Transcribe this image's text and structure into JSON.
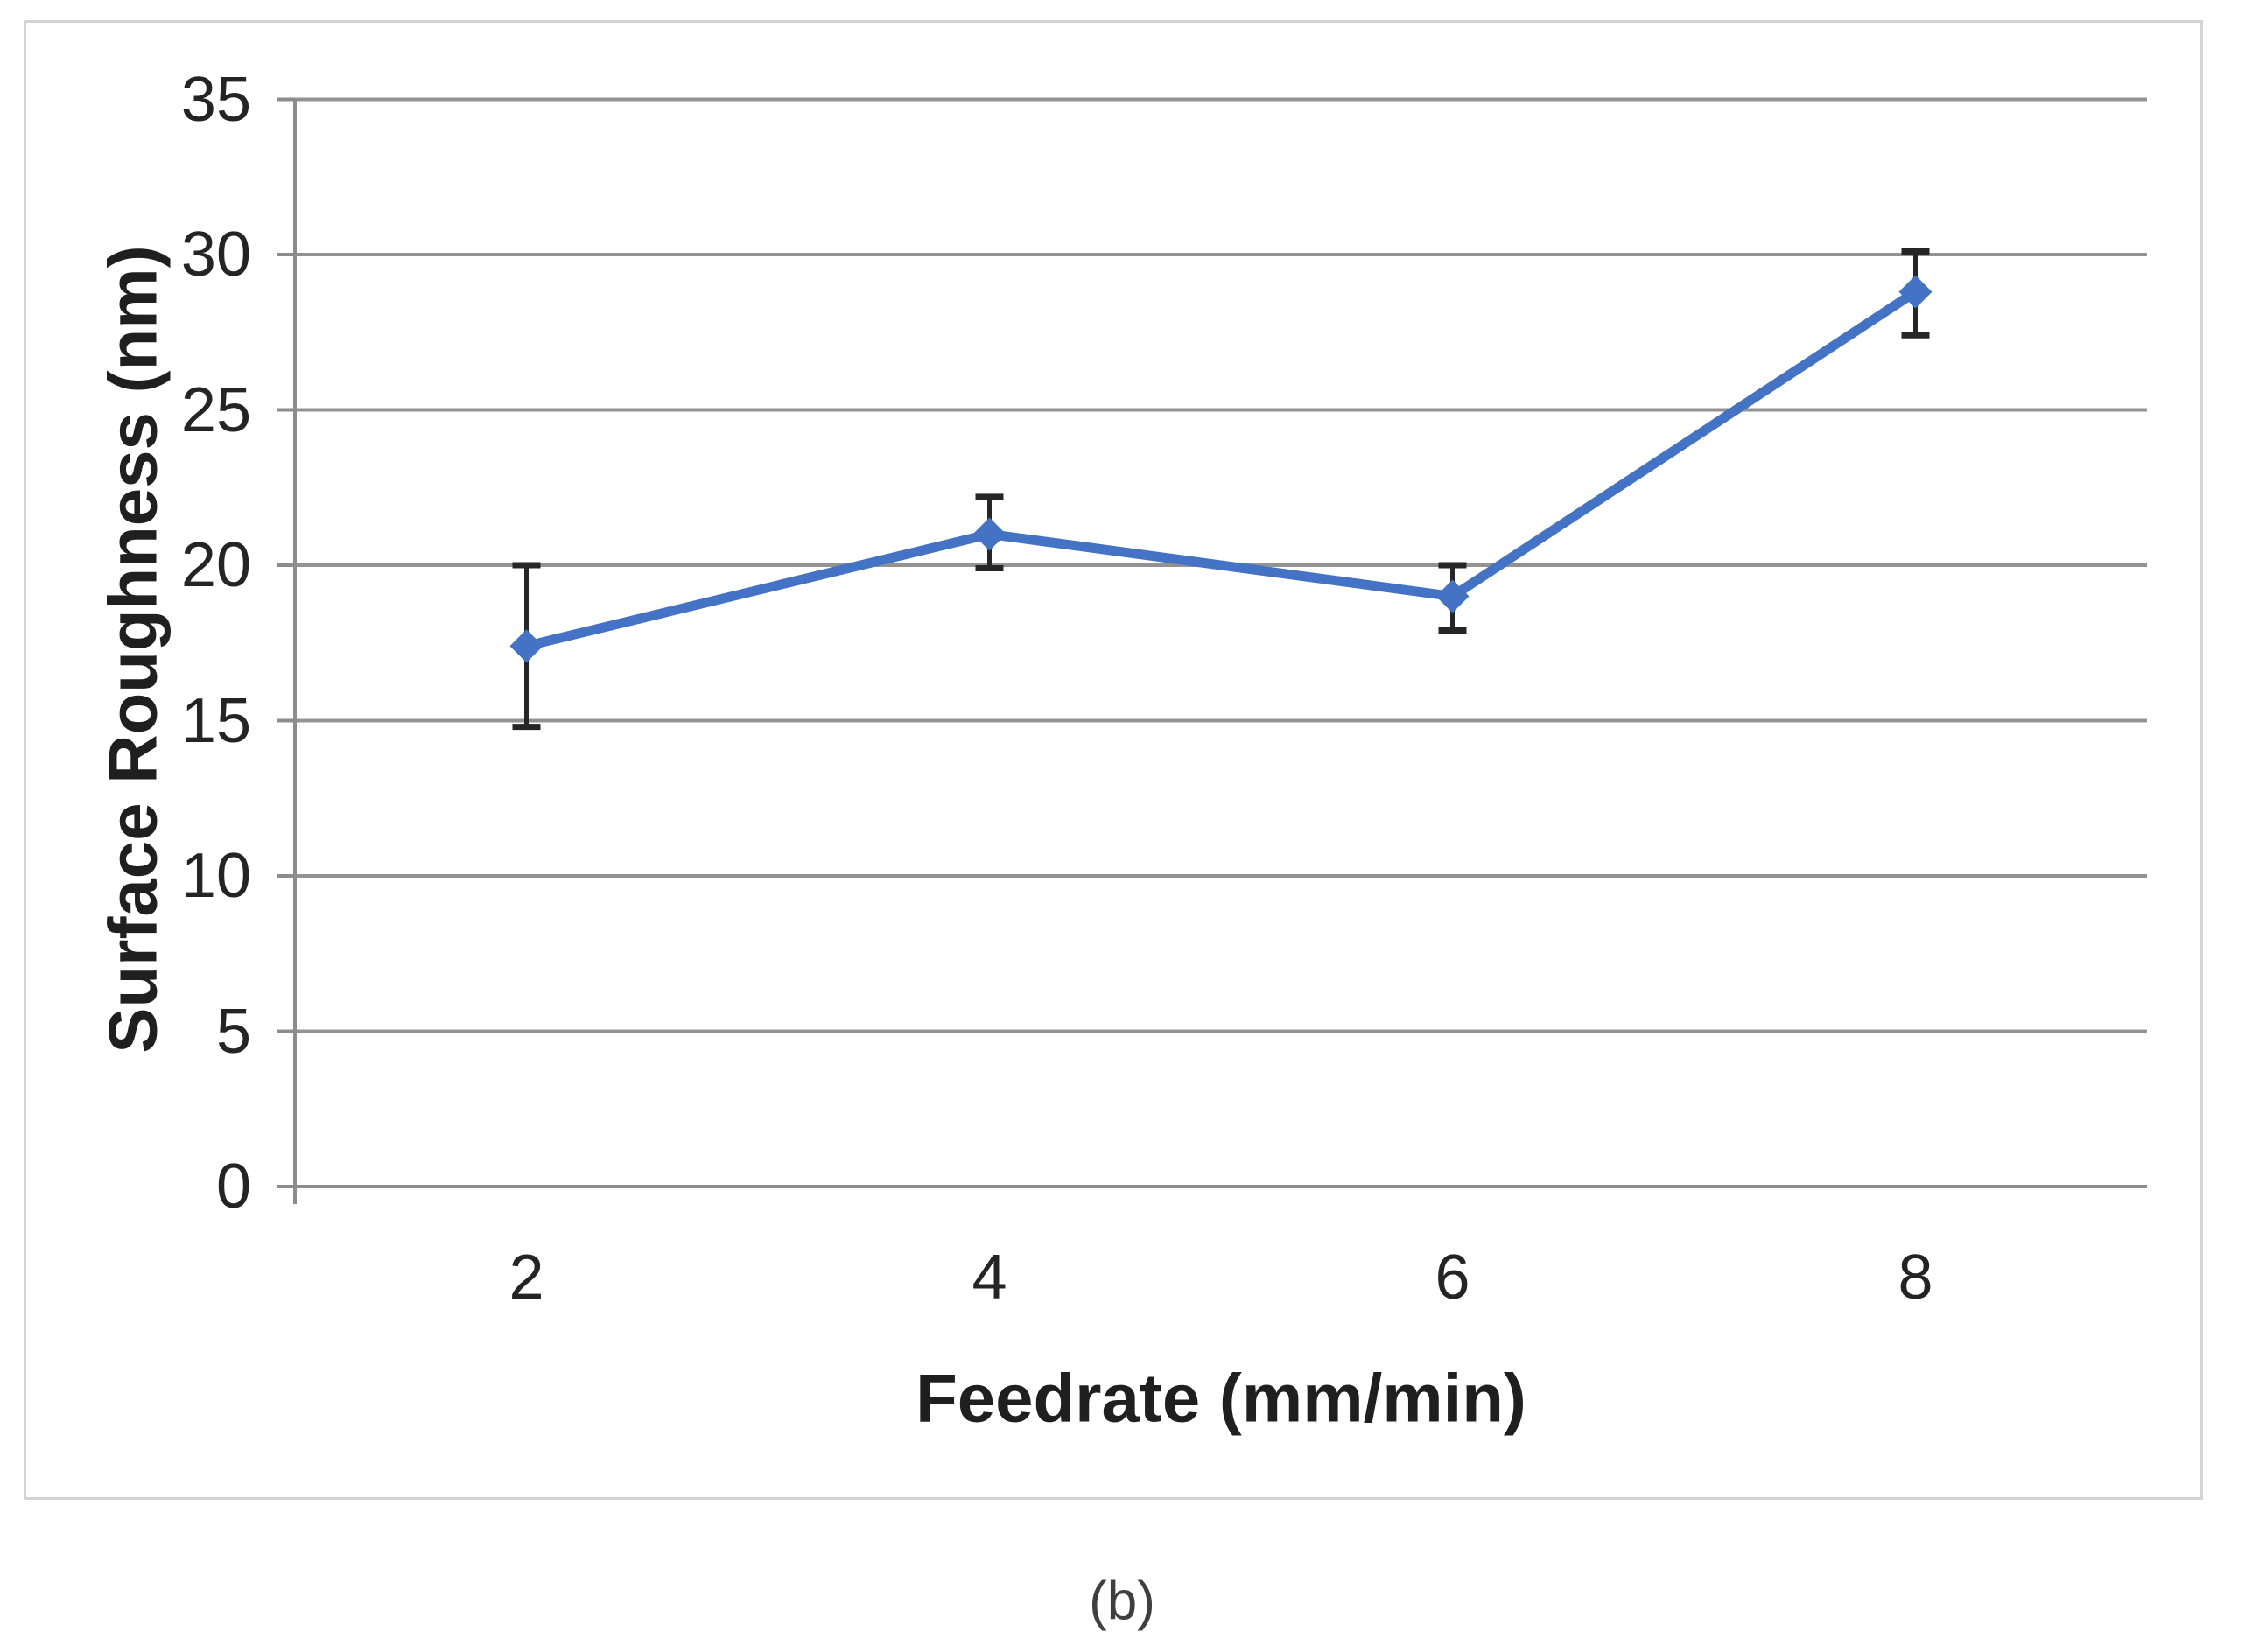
{
  "caption": "(b)",
  "chart_data": {
    "type": "line",
    "title": "",
    "xlabel": "Feedrate (mm/min)",
    "ylabel": "Surface Roughness (nm)",
    "categories": [
      "2",
      "4",
      "6",
      "8"
    ],
    "series": [
      {
        "name": "Surface Roughness",
        "values": [
          17.4,
          21.0,
          19.0,
          28.8
        ],
        "error_plus": [
          2.6,
          1.2,
          1.0,
          1.3
        ],
        "error_minus": [
          2.6,
          1.1,
          1.1,
          1.4
        ]
      }
    ],
    "ylim": [
      0,
      35
    ],
    "yticks": [
      0,
      5,
      10,
      15,
      20,
      25,
      30,
      35
    ],
    "grid": "horizontal",
    "legend_position": "none",
    "marker": "diamond",
    "colors": {
      "series": "#4472C4",
      "error_bar": "#262626",
      "gridline": "#939393",
      "axis": "#8c8c8c",
      "tick_text": "#242424",
      "title_text": "#1f1f1f",
      "caption_text": "#3f3f3f",
      "figure_border": "#d4d4d4",
      "background": "#ffffff"
    }
  }
}
